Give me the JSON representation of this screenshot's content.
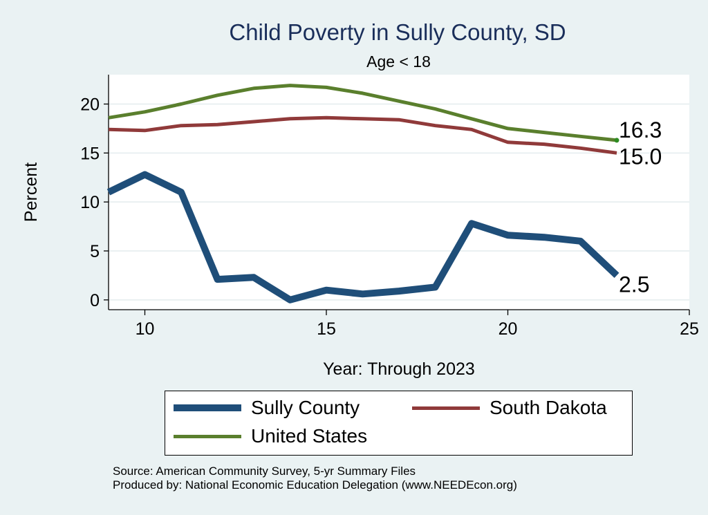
{
  "title": "Child Poverty in Sully County, SD",
  "subtitle": "Age < 18",
  "source_lines": [
    "Source: American Community Survey, 5-yr Summary Files",
    "Produced by: National Economic Education Delegation (www.NEEDEcon.org)"
  ],
  "chart_data": {
    "type": "line",
    "title": "Child Poverty in Sully County, SD",
    "subtitle": "Age < 18",
    "xlabel": "Year: Through 2023",
    "ylabel": "Percent",
    "xlim": [
      9,
      25
    ],
    "ylim": [
      -1,
      23
    ],
    "x_ticks": [
      10,
      15,
      20,
      25
    ],
    "y_ticks": [
      0,
      5,
      10,
      15,
      20
    ],
    "grid": "horizontal",
    "legend": "bottom",
    "x": [
      9,
      10,
      11,
      12,
      13,
      14,
      15,
      16,
      17,
      18,
      19,
      20,
      21,
      22,
      23
    ],
    "series": [
      {
        "name": "Sully County",
        "color": "#1f4e79",
        "line_width": "thick",
        "values": [
          11.0,
          12.8,
          11.0,
          2.1,
          2.3,
          0.0,
          1.0,
          0.6,
          0.9,
          1.3,
          7.8,
          6.6,
          6.4,
          6.0,
          2.5
        ],
        "end_label": "2.5"
      },
      {
        "name": "South Dakota",
        "color": "#903a3a",
        "line_width": "thin",
        "values": [
          17.4,
          17.3,
          17.8,
          17.9,
          18.2,
          18.5,
          18.6,
          18.5,
          18.4,
          17.8,
          17.4,
          16.1,
          15.9,
          15.5,
          15.0
        ],
        "end_label": "15.0"
      },
      {
        "name": "United States",
        "color": "#5a7f2d",
        "line_width": "thin",
        "values": [
          18.6,
          19.2,
          20.0,
          20.9,
          21.6,
          21.9,
          21.7,
          21.1,
          20.3,
          19.5,
          18.5,
          17.5,
          17.1,
          16.7,
          16.3
        ],
        "end_label": "16.3"
      }
    ]
  }
}
